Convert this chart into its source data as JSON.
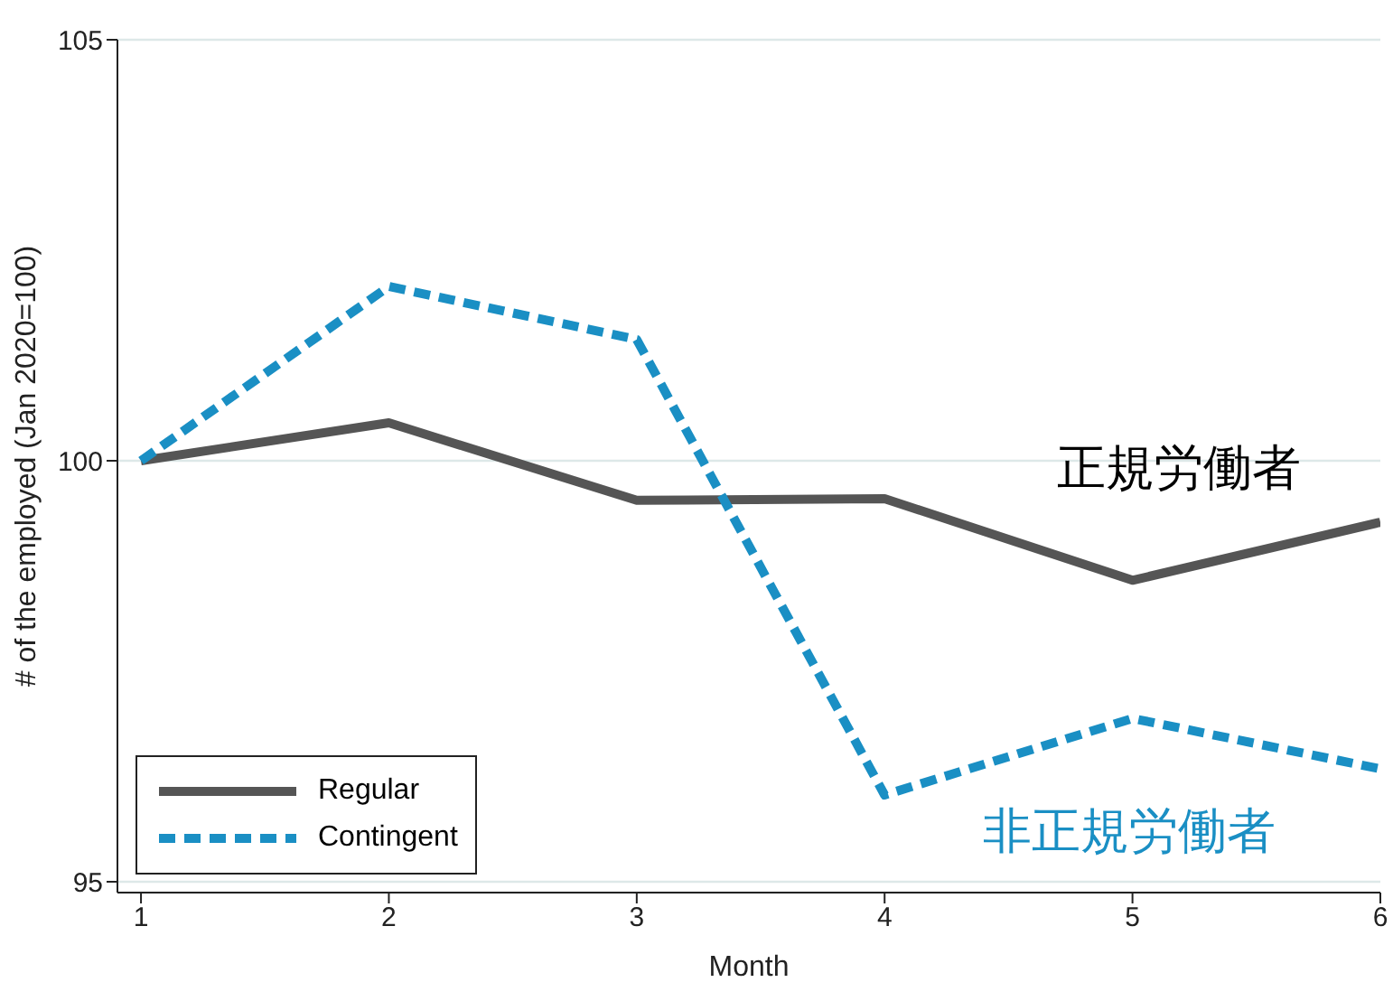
{
  "chart_data": {
    "type": "line",
    "xlabel": "Month",
    "ylabel": "# of the employed (Jan 2020=100)",
    "x": [
      1,
      2,
      3,
      4,
      5,
      6
    ],
    "series": [
      {
        "name": "Regular",
        "color": "#555555",
        "line_style": "solid",
        "values": [
          100,
          100.45,
          99.53,
          99.55,
          98.58,
          99.27
        ]
      },
      {
        "name": "Contingent",
        "color": "#1a8fc4",
        "line_style": "dashed",
        "values": [
          100,
          102.07,
          101.44,
          96.03,
          96.94,
          96.34
        ]
      }
    ],
    "xlim": [
      0.905,
      6
    ],
    "xticks": [
      1,
      2,
      3,
      4,
      5,
      6
    ],
    "ylim": [
      95,
      105
    ],
    "yticks": [
      95,
      100,
      105
    ],
    "grid": "y",
    "legend": "bottom left",
    "marker": "none",
    "annotations": [
      "正規労働者",
      "非正規労働者"
    ]
  }
}
